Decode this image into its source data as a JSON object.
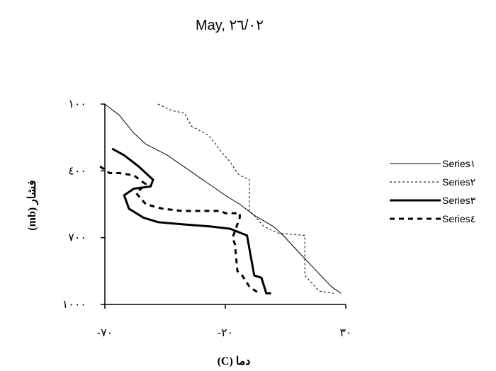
{
  "chart_data": {
    "type": "line",
    "title": "May, ٢٦/٠٢",
    "xlabel": "دما (C)",
    "ylabel": "فشار (mb)",
    "xlim": [
      -70,
      30
    ],
    "ylim": [
      1000,
      100
    ],
    "x_ticks": [
      {
        "value": -70,
        "label": "-٧٠"
      },
      {
        "value": -20,
        "label": "-٢٠"
      },
      {
        "value": 30,
        "label": "٣٠"
      }
    ],
    "y_ticks": [
      {
        "value": 100,
        "label": "١٠٠"
      },
      {
        "value": 400,
        "label": "٤٠٠"
      },
      {
        "value": 700,
        "label": "٧٠٠"
      },
      {
        "value": 1000,
        "label": "١٠٠٠"
      }
    ],
    "legend_position": "right",
    "series": [
      {
        "name": "Series١",
        "style": "solid",
        "color": "#000000",
        "points": [
          {
            "x": -70,
            "y": 100
          },
          {
            "x": -64,
            "y": 150
          },
          {
            "x": -58,
            "y": 230
          },
          {
            "x": -53,
            "y": 280
          },
          {
            "x": -44,
            "y": 330
          },
          {
            "x": -36,
            "y": 390
          },
          {
            "x": -28,
            "y": 450
          },
          {
            "x": -20,
            "y": 510
          },
          {
            "x": -14,
            "y": 550
          },
          {
            "x": -8,
            "y": 600
          },
          {
            "x": 0,
            "y": 650
          },
          {
            "x": 4,
            "y": 690
          },
          {
            "x": 10,
            "y": 760
          },
          {
            "x": 17,
            "y": 840
          },
          {
            "x": 24,
            "y": 920
          },
          {
            "x": 28,
            "y": 950
          }
        ]
      },
      {
        "name": "Series٢",
        "style": "dotted",
        "color": "#000000",
        "points": [
          {
            "x": -48,
            "y": 100
          },
          {
            "x": -42,
            "y": 130
          },
          {
            "x": -37,
            "y": 140
          },
          {
            "x": -34,
            "y": 200
          },
          {
            "x": -27,
            "y": 240
          },
          {
            "x": -24,
            "y": 280
          },
          {
            "x": -22,
            "y": 310
          },
          {
            "x": -18,
            "y": 360
          },
          {
            "x": -15,
            "y": 410
          },
          {
            "x": -14,
            "y": 420
          },
          {
            "x": -10,
            "y": 440
          },
          {
            "x": -10,
            "y": 580
          },
          {
            "x": -8,
            "y": 600
          },
          {
            "x": -4,
            "y": 650
          },
          {
            "x": 2,
            "y": 680
          },
          {
            "x": 13,
            "y": 690
          },
          {
            "x": 13,
            "y": 870
          },
          {
            "x": 19,
            "y": 940
          },
          {
            "x": 25,
            "y": 950
          }
        ]
      },
      {
        "name": "Series٣",
        "style": "bold",
        "color": "#000000",
        "points": [
          {
            "x": -67,
            "y": 300
          },
          {
            "x": -62,
            "y": 330
          },
          {
            "x": -56,
            "y": 380
          },
          {
            "x": -50,
            "y": 440
          },
          {
            "x": -51,
            "y": 470
          },
          {
            "x": -58,
            "y": 480
          },
          {
            "x": -62,
            "y": 510
          },
          {
            "x": -60,
            "y": 570
          },
          {
            "x": -54,
            "y": 610
          },
          {
            "x": -48,
            "y": 630
          },
          {
            "x": -38,
            "y": 640
          },
          {
            "x": -26,
            "y": 650
          },
          {
            "x": -18,
            "y": 660
          },
          {
            "x": -11,
            "y": 690
          },
          {
            "x": -8,
            "y": 870
          },
          {
            "x": -5,
            "y": 880
          },
          {
            "x": -3,
            "y": 950
          },
          {
            "x": -1,
            "y": 950
          }
        ]
      },
      {
        "name": "Series٤",
        "style": "dashed",
        "color": "#000000",
        "points": [
          {
            "x": -72,
            "y": 380
          },
          {
            "x": -68,
            "y": 410
          },
          {
            "x": -64,
            "y": 410
          },
          {
            "x": -58,
            "y": 420
          },
          {
            "x": -53,
            "y": 460
          },
          {
            "x": -57,
            "y": 500
          },
          {
            "x": -53,
            "y": 550
          },
          {
            "x": -46,
            "y": 570
          },
          {
            "x": -38,
            "y": 580
          },
          {
            "x": -22,
            "y": 580
          },
          {
            "x": -20,
            "y": 590
          },
          {
            "x": -14,
            "y": 590
          },
          {
            "x": -14,
            "y": 610
          },
          {
            "x": -17,
            "y": 700
          },
          {
            "x": -16,
            "y": 730
          },
          {
            "x": -15,
            "y": 850
          },
          {
            "x": -13,
            "y": 870
          },
          {
            "x": -10,
            "y": 920
          },
          {
            "x": -6,
            "y": 950
          }
        ]
      }
    ]
  }
}
